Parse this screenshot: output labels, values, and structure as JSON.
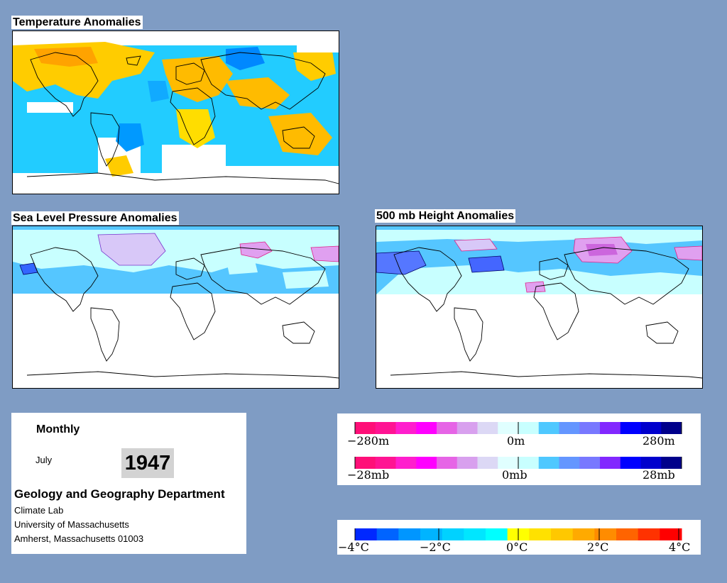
{
  "titles": {
    "temperature": "Temperature Anomalies",
    "slp": "Sea Level Pressure Anomalies",
    "height500": "500 mb Height Anomalies"
  },
  "info": {
    "period": "Monthly",
    "month": "July",
    "year": "1947",
    "department": "Geology and Geography Department",
    "lab": "Climate Lab",
    "university": "University of Massachusetts",
    "address": "Amherst, Massachusetts 01003"
  },
  "legend_height": {
    "left": "−280m",
    "center": "0m",
    "right": "280m",
    "colors": [
      "#ff0f78",
      "#ff1493",
      "#ff1ecd",
      "#ff00ff",
      "#e664e6",
      "#d8a0ee",
      "#dcd8f5",
      "#e0ffff",
      "#c8ffff",
      "#4fc8ff",
      "#6496ff",
      "#7878ff",
      "#8228ff",
      "#0000ff",
      "#0000cd",
      "#00008b"
    ]
  },
  "legend_pressure": {
    "left": "−28mb",
    "center": "0mb",
    "right": "28mb"
  },
  "legend_temperature": {
    "labels": [
      "−4°C",
      "−2°C",
      "0°C",
      "2°C",
      "4°C"
    ],
    "colors": [
      "#0028ff",
      "#0064ff",
      "#0096ff",
      "#00b4ff",
      "#00d2ff",
      "#00e6ff",
      "#00ffff",
      "#ffff00",
      "#ffe100",
      "#ffc800",
      "#ffaa00",
      "#ff8c00",
      "#ff6400",
      "#ff3200",
      "#ff0000"
    ]
  }
}
